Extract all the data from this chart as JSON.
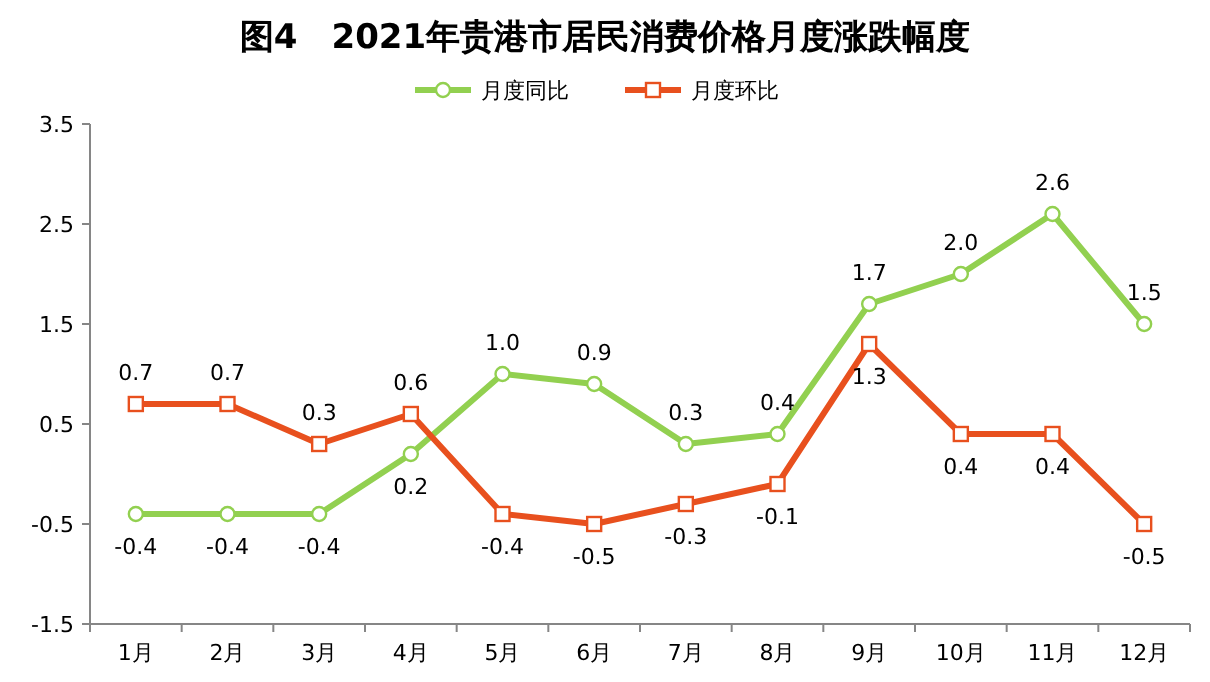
{
  "chart_data": {
    "type": "line",
    "title": "图4　2021年贵港市居民消费价格月度涨跌幅度",
    "categories": [
      "1月",
      "2月",
      "3月",
      "4月",
      "5月",
      "6月",
      "7月",
      "8月",
      "9月",
      "10月",
      "11月",
      "12月"
    ],
    "series": [
      {
        "name": "月度同比",
        "color": "#92d050",
        "marker": "circle",
        "values": [
          -0.4,
          -0.4,
          -0.4,
          0.2,
          1.0,
          0.9,
          0.3,
          0.4,
          1.7,
          2.0,
          2.6,
          1.5
        ],
        "value_labels": [
          "-0.4",
          "-0.4",
          "-0.4",
          "0.2",
          "1.0",
          "0.9",
          "0.3",
          "0.4",
          "1.7",
          "2.0",
          "2.6",
          "1.5"
        ]
      },
      {
        "name": "月度环比",
        "color": "#e8501e",
        "marker": "square",
        "values": [
          0.7,
          0.7,
          0.3,
          0.6,
          -0.4,
          -0.5,
          -0.3,
          -0.1,
          1.3,
          0.4,
          0.4,
          -0.5
        ],
        "value_labels": [
          "0.7",
          "0.7",
          "0.3",
          "0.6",
          "-0.4",
          "-0.5",
          "-0.3",
          "-0.1",
          "1.3",
          "0.4",
          "0.4",
          "-0.5"
        ]
      }
    ],
    "ylim": [
      -1.5,
      3.5
    ],
    "yticks": [
      -1.5,
      -0.5,
      0.5,
      1.5,
      2.5,
      3.5
    ],
    "legend": "top",
    "grid": false,
    "line_style": "solid"
  }
}
